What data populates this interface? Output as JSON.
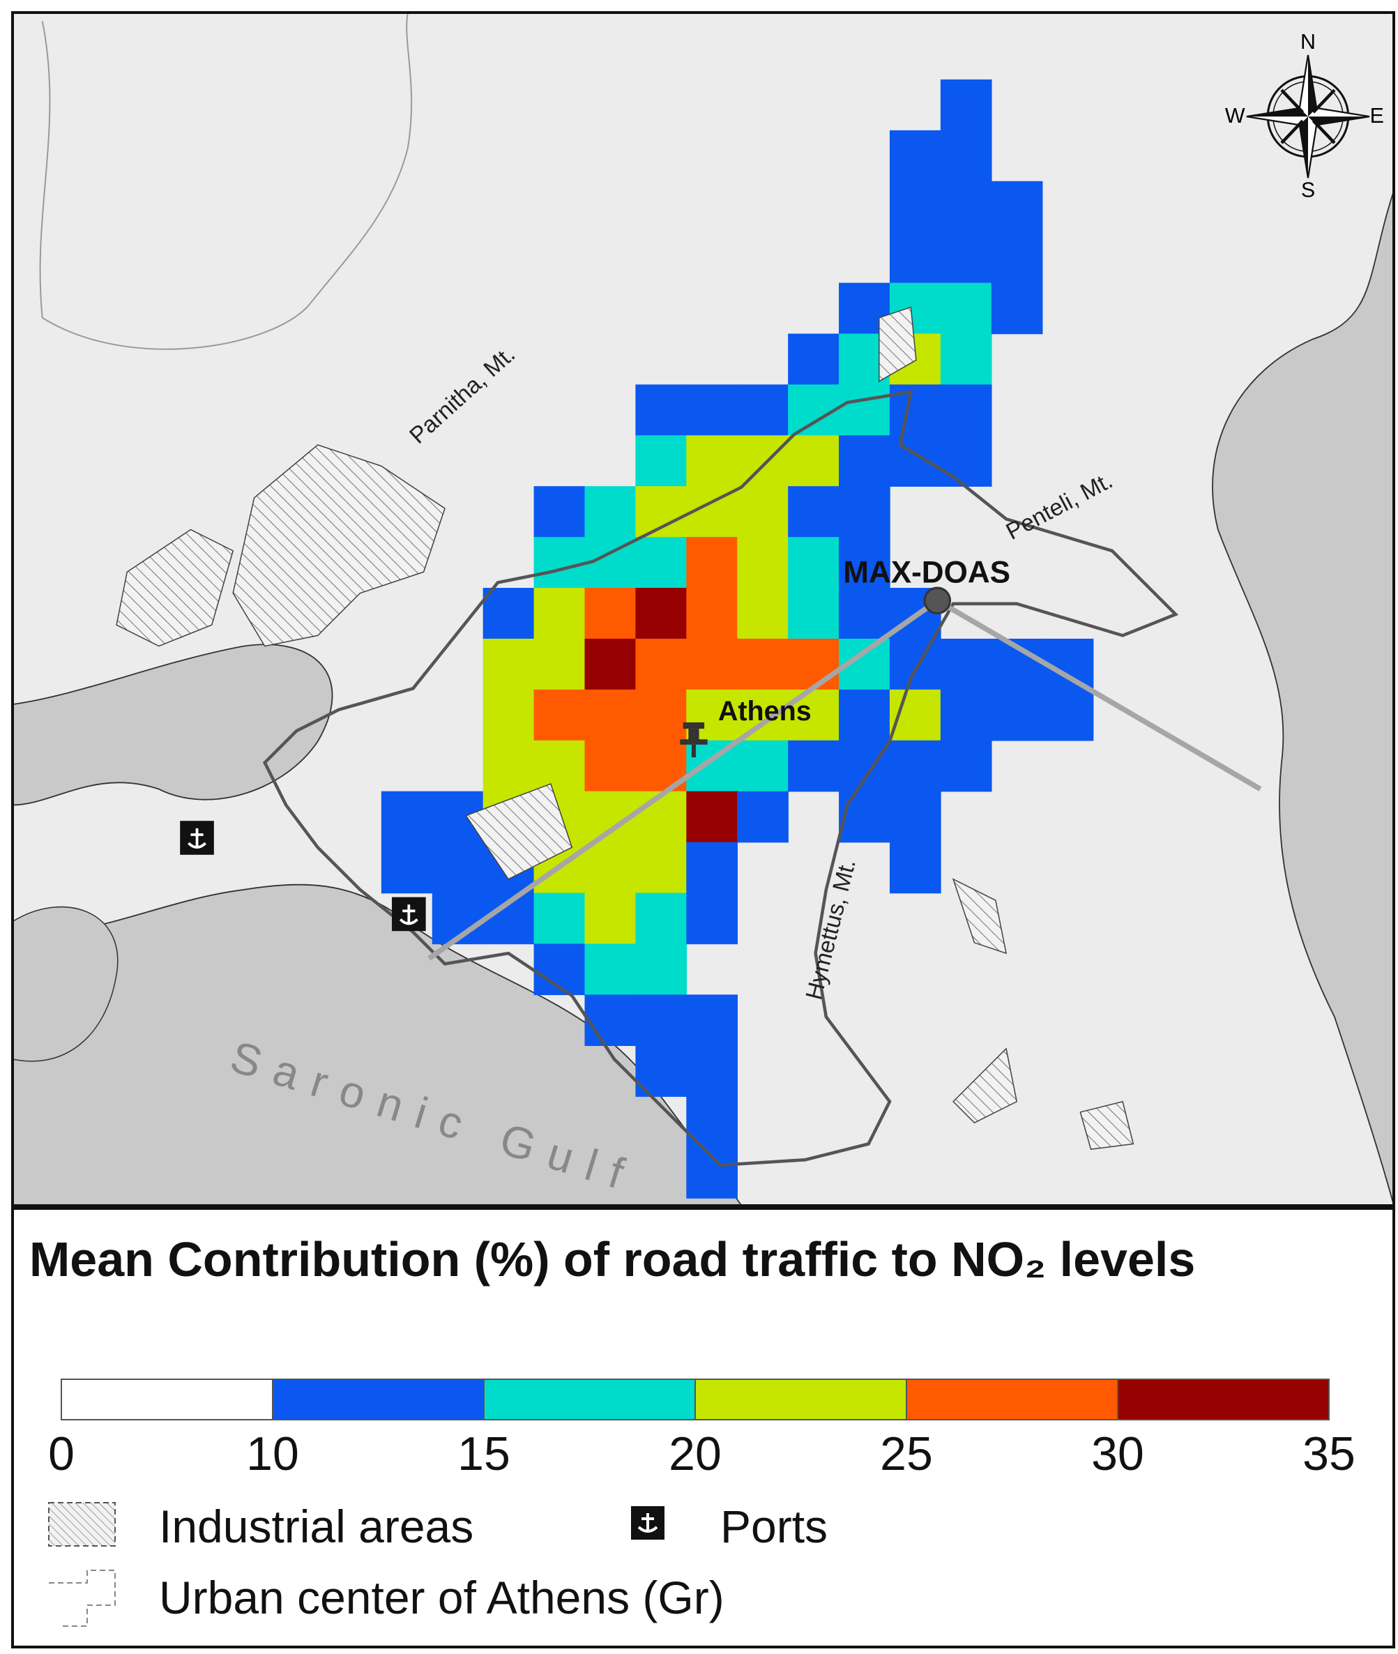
{
  "map": {
    "labels": {
      "mountains": [
        "Parnitha, Mt.",
        "Penteli, Mt.",
        "Hymettus, Mt."
      ],
      "gulf": "Saronic Gulf",
      "station": "MAX-DOAS",
      "city": "Athens"
    },
    "compass": [
      "N",
      "E",
      "S",
      "W"
    ],
    "grid": [
      [
        null,
        null,
        null,
        null,
        null,
        null,
        null,
        null,
        null,
        null,
        null,
        12,
        null,
        null
      ],
      [
        null,
        null,
        null,
        null,
        null,
        null,
        null,
        null,
        null,
        null,
        12,
        12,
        null,
        null
      ],
      [
        null,
        null,
        null,
        null,
        null,
        null,
        null,
        null,
        null,
        null,
        12,
        12,
        12,
        null
      ],
      [
        null,
        null,
        null,
        null,
        null,
        null,
        null,
        null,
        null,
        null,
        12,
        12,
        12,
        null
      ],
      [
        null,
        null,
        null,
        null,
        null,
        null,
        null,
        null,
        null,
        12,
        17,
        17,
        12,
        null
      ],
      [
        null,
        null,
        null,
        null,
        null,
        null,
        null,
        null,
        12,
        17,
        22,
        17,
        null,
        null
      ],
      [
        null,
        null,
        null,
        null,
        null,
        12,
        12,
        12,
        17,
        17,
        12,
        12,
        null,
        null
      ],
      [
        null,
        null,
        null,
        null,
        null,
        17,
        22,
        22,
        22,
        12,
        12,
        12,
        null,
        null
      ],
      [
        null,
        null,
        null,
        12,
        17,
        22,
        22,
        22,
        12,
        12,
        null,
        null,
        null,
        null
      ],
      [
        null,
        null,
        null,
        17,
        17,
        17,
        27,
        22,
        17,
        12,
        null,
        null,
        null,
        null
      ],
      [
        null,
        null,
        12,
        22,
        27,
        32,
        27,
        22,
        17,
        12,
        12,
        null,
        null,
        null
      ],
      [
        null,
        null,
        22,
        22,
        32,
        27,
        27,
        27,
        27,
        17,
        12,
        12,
        12,
        12
      ],
      [
        null,
        null,
        22,
        27,
        27,
        27,
        22,
        22,
        22,
        12,
        22,
        12,
        12,
        12
      ],
      [
        null,
        null,
        22,
        22,
        27,
        27,
        17,
        17,
        12,
        12,
        12,
        12,
        null,
        null
      ],
      [
        12,
        12,
        22,
        22,
        22,
        22,
        32,
        12,
        null,
        12,
        12,
        null,
        null,
        null
      ],
      [
        12,
        12,
        12,
        22,
        22,
        22,
        12,
        null,
        null,
        null,
        12,
        null,
        null,
        null
      ],
      [
        null,
        12,
        12,
        17,
        22,
        17,
        12,
        null,
        null,
        null,
        null,
        null,
        null,
        null
      ],
      [
        null,
        null,
        null,
        12,
        17,
        17,
        null,
        null,
        null,
        null,
        null,
        null,
        null,
        null
      ],
      [
        null,
        null,
        null,
        null,
        12,
        12,
        12,
        null,
        null,
        null,
        null,
        null,
        null,
        null
      ],
      [
        null,
        null,
        null,
        null,
        null,
        12,
        12,
        null,
        null,
        null,
        null,
        null,
        null,
        null
      ],
      [
        null,
        null,
        null,
        null,
        null,
        null,
        12,
        null,
        null,
        null,
        null,
        null,
        null,
        null
      ],
      [
        null,
        null,
        null,
        null,
        null,
        null,
        12,
        null,
        null,
        null,
        null,
        null,
        null,
        null
      ]
    ]
  },
  "legend": {
    "title": "Mean Contribution (%) of road traffic to NO₂ levels",
    "scale": {
      "breaks": [
        0,
        10,
        15,
        20,
        25,
        30,
        35
      ],
      "colors": [
        "#ffffff",
        "#0a58f0",
        "#00dccc",
        "#c6e600",
        "#ff5a00",
        "#960000"
      ]
    },
    "items": [
      "Industrial areas",
      "Ports",
      "Urban center of Athens (Gr)"
    ]
  }
}
